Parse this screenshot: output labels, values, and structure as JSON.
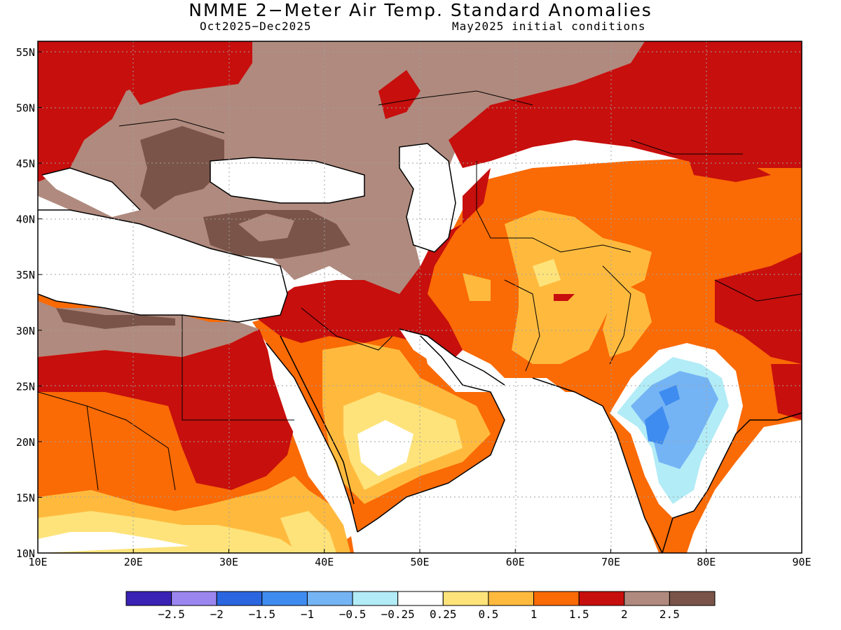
{
  "title": "NMME 2−Meter Air Temp. Standard Anomalies",
  "subtitle_left": "Oct2025−Dec2025",
  "subtitle_right": "May2025 initial conditions",
  "axes": {
    "lon_labels": [
      "10E",
      "20E",
      "30E",
      "40E",
      "50E",
      "60E",
      "70E",
      "80E",
      "90E"
    ],
    "lat_labels": [
      "10N",
      "15N",
      "20N",
      "25N",
      "30N",
      "35N",
      "40N",
      "45N",
      "50N",
      "55N"
    ]
  },
  "legend": {
    "colors": [
      "#3a22b5",
      "#9b86f0",
      "#2a66e0",
      "#3f8cf0",
      "#74b4f5",
      "#b2ecf6",
      "#ffffff",
      "#fde37a",
      "#ffba3e",
      "#fa6a05",
      "#c70f0d",
      "#b08a7e",
      "#7a5449"
    ],
    "labels": [
      "−2.5",
      "−2",
      "−1.5",
      "−1",
      "−0.5",
      "−0.25",
      "0.25",
      "0.5",
      "1",
      "1.5",
      "2",
      "2.5"
    ]
  },
  "colors": {
    "sea": "#ffffff",
    "coast": "#000000",
    "grid": "#a0a0a0"
  }
}
